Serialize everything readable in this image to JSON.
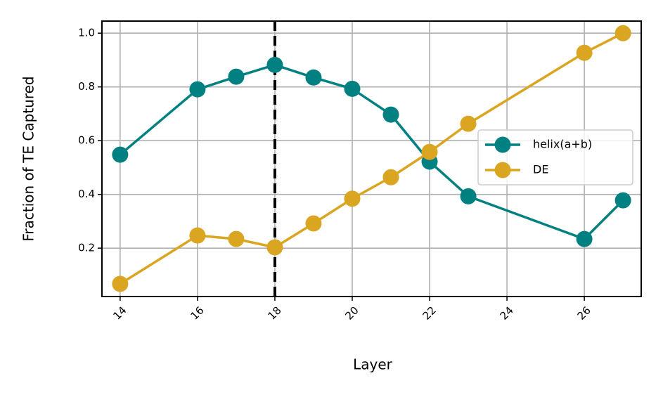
{
  "chart_data": {
    "type": "line",
    "x_label": "Layer",
    "y_label": "Fraction of TE Captured",
    "xlim": [
      13.53,
      27.47
    ],
    "ylim": [
      0.02,
      1.045
    ],
    "xticks": [
      14,
      16,
      18,
      20,
      22,
      24,
      26
    ],
    "yticks": [
      0.2,
      0.4,
      0.6,
      0.8,
      {
        "value": 1,
        "label": "1.0"
      }
    ],
    "grid": true,
    "legend": "right",
    "vline": 18,
    "x": [
      14,
      16,
      17,
      18,
      19,
      20,
      21,
      22,
      23,
      26,
      27
    ],
    "series": [
      {
        "name": "helix(a+b)",
        "color": "#008080",
        "values": [
          0.548,
          0.791,
          0.838,
          0.882,
          0.835,
          0.793,
          0.697,
          0.522,
          0.393,
          0.234,
          0.378
        ]
      },
      {
        "name": "DE",
        "color": "#daa520",
        "values": [
          0.067,
          0.247,
          0.234,
          0.203,
          0.292,
          0.384,
          0.464,
          0.558,
          0.663,
          0.927,
          1.0
        ]
      }
    ]
  }
}
